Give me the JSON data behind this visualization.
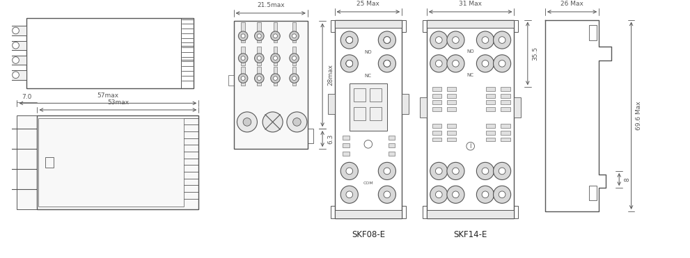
{
  "bg_color": "#ffffff",
  "lc": "#555555",
  "lc_dark": "#222222",
  "lw": 0.8,
  "fs": 6.5,
  "fs_label": 8.5,
  "labels": {
    "dim_57": "57max",
    "dim_53": "53max",
    "dim_7": "7.0",
    "dim_21_5": "21.5max",
    "dim_28": "28max",
    "dim_6_3": "6.3",
    "dim_25": "25 Max",
    "dim_31": "31 Max",
    "dim_35_5": "35.5",
    "dim_26": "26 Max",
    "dim_8": "8",
    "dim_69_6": "69.6 Max",
    "label_skf08": "SKF08-E",
    "label_skf14": "SKF14-E"
  }
}
